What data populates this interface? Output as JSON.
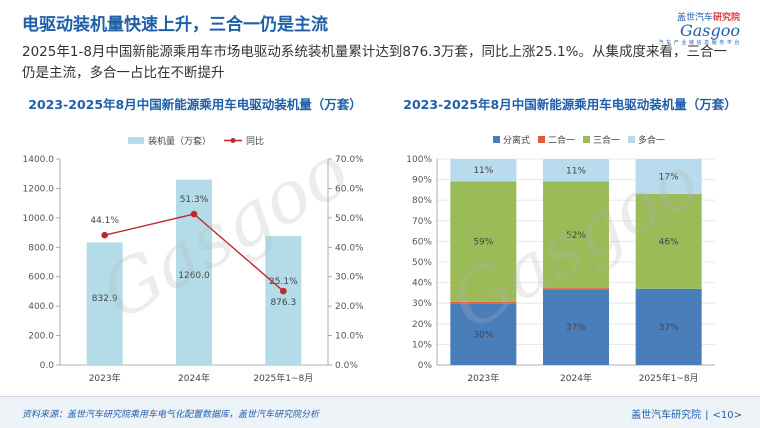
{
  "header": {
    "title": "电驱动装机量快速上升，三合一仍是主流",
    "description": "2025年1-8月中国新能源乘用车市场电驱动系统装机量累计达到876.3万套，同比上涨25.1%。从集成度来看，三合一仍是主流，多合一占比在不断提升"
  },
  "logo": {
    "prefix": "盖世汽车",
    "highlight": "研究院",
    "brand": "Gasgoo",
    "tagline": "汽 车 产 业 链 信 息 服 务 平 台"
  },
  "watermark": {
    "text": "Gasgoo"
  },
  "chart_data": [
    {
      "type": "bar",
      "title": "2023-2025年8月中国新能源乘用车电驱动装机量（万套）",
      "categories": [
        "2023年",
        "2024年",
        "2025年1~8月"
      ],
      "series": [
        {
          "name": "装机量（万套）",
          "type": "bar",
          "values": [
            832.9,
            1260.0,
            876.3
          ],
          "color": "#b3dce8",
          "labels": [
            "832.9",
            "1260.0",
            "876.3"
          ]
        },
        {
          "name": "同比",
          "type": "line",
          "axis": "right",
          "values": [
            44.1,
            51.3,
            25.1
          ],
          "color": "#c0272d",
          "labels": [
            "44.1%",
            "51.3%",
            "25.1%"
          ]
        }
      ],
      "ylim": [
        0,
        1400
      ],
      "y_ticks": [
        "0.0",
        "200.0",
        "400.0",
        "600.0",
        "800.0",
        "1000.0",
        "1200.0",
        "1400.0"
      ],
      "y2lim": [
        0,
        70
      ],
      "y2_ticks": [
        "0.0%",
        "10.0%",
        "20.0%",
        "30.0%",
        "40.0%",
        "50.0%",
        "60.0%",
        "70.0%"
      ],
      "legend": "top",
      "grid": false
    },
    {
      "type": "bar",
      "stacked": true,
      "title": "2023-2025年8月中国新能源乘用车电驱动装机量（万套）",
      "categories": [
        "2023年",
        "2024年",
        "2025年1~8月"
      ],
      "series": [
        {
          "name": "分离式",
          "values": [
            30,
            37,
            37
          ],
          "color": "#4a7ebb",
          "labels": [
            "30%",
            "37%",
            "37%"
          ]
        },
        {
          "name": "二合一",
          "values": [
            1,
            0.5,
            0
          ],
          "color": "#e0593f",
          "labels": [
            "",
            "",
            ""
          ]
        },
        {
          "name": "三合一",
          "values": [
            59,
            52,
            46
          ],
          "color": "#9bbb59",
          "labels": [
            "59%",
            "52%",
            "46%"
          ]
        },
        {
          "name": "多合一",
          "values": [
            11,
            11,
            17
          ],
          "color": "#b8dced",
          "labels": [
            "11%",
            "11%",
            "17%"
          ]
        }
      ],
      "ylim": [
        0,
        100
      ],
      "y_ticks": [
        "0%",
        "10%",
        "20%",
        "30%",
        "40%",
        "50%",
        "60%",
        "70%",
        "80%",
        "90%",
        "100%"
      ],
      "legend": "top",
      "grid": true
    }
  ],
  "footer": {
    "source": "资料来源：盖世汽车研究院乘用车电气化配置数据库，盖世汽车研究院分析",
    "org": "盖世汽车研究院",
    "page": "<10>"
  }
}
